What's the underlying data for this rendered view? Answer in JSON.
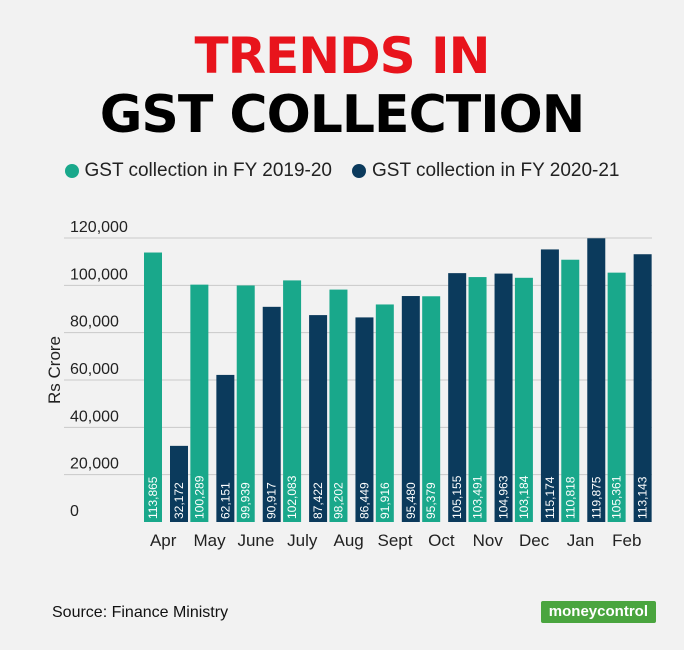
{
  "title": {
    "line1": "TRENDS IN",
    "line2": "GST COLLECTION",
    "line1_color": "#e8141c"
  },
  "legend": [
    {
      "label": "GST collection in FY 2019-20",
      "color": "#19a88b"
    },
    {
      "label": "GST collection in FY 2020-21",
      "color": "#0b3a5c"
    }
  ],
  "source": "Source: Finance Ministry",
  "brand": {
    "part1": "money",
    "part2": "control"
  },
  "chart_data": {
    "type": "bar",
    "ylabel": "Rs Crore",
    "ylim": [
      0,
      120000
    ],
    "yticks": [
      "0",
      "20,000",
      "40,000",
      "60,000",
      "80,000",
      "100,000",
      "120,000"
    ],
    "grid": true,
    "categories": [
      "Apr",
      "May",
      "June",
      "July",
      "Aug",
      "Sept",
      "Oct",
      "Nov",
      "Dec",
      "Jan",
      "Feb"
    ],
    "series": [
      {
        "name": "GST collection in FY 2019-20",
        "color": "#19a88b",
        "values": [
          113865,
          100289,
          99939,
          102083,
          98202,
          91916,
          95379,
          103491,
          103184,
          110818,
          105361
        ],
        "labels": [
          "113,865",
          "100,289",
          "99,939",
          "102,083",
          "98,202",
          "91,916",
          "95,379",
          "103,491",
          "103,184",
          "110,818",
          "105,361"
        ]
      },
      {
        "name": "GST collection in FY 2020-21",
        "color": "#0b3a5c",
        "values": [
          32172,
          62151,
          90917,
          87422,
          86449,
          95480,
          105155,
          104963,
          115174,
          119875,
          113143
        ],
        "labels": [
          "32,172",
          "62,151",
          "90,917",
          "87,422",
          "86,449",
          "95,480",
          "105,155",
          "104,963",
          "115,174",
          "119,875",
          "113,143"
        ]
      }
    ]
  }
}
